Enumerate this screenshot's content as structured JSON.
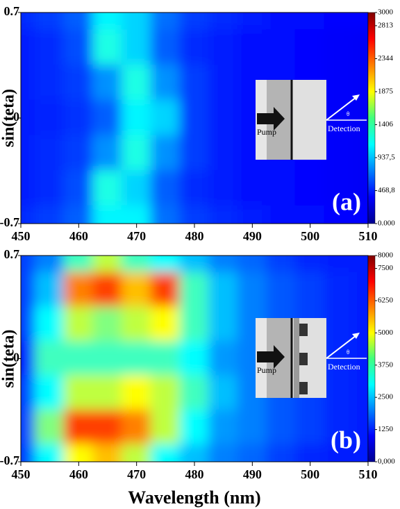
{
  "chart_data": [
    {
      "type": "heatmap",
      "y_label": "sin(teta)",
      "annotation": "(a)",
      "inset": {
        "pump": "Pump",
        "detection": "Detection",
        "angle": "θ"
      },
      "x": [
        450,
        455,
        460,
        465,
        470,
        475,
        480,
        485,
        490,
        495,
        500,
        505,
        510
      ],
      "y": [
        0.7,
        0.467,
        0.233,
        0,
        -0.233,
        -0.467,
        -0.7
      ],
      "values": [
        [
          500,
          550,
          650,
          1100,
          1000,
          700,
          550,
          500,
          450,
          420,
          400,
          380,
          380
        ],
        [
          450,
          500,
          600,
          1200,
          1000,
          650,
          500,
          450,
          420,
          400,
          380,
          360,
          350
        ],
        [
          450,
          500,
          550,
          800,
          1200,
          800,
          550,
          450,
          420,
          400,
          380,
          360,
          350
        ],
        [
          450,
          480,
          520,
          650,
          1100,
          1000,
          550,
          450,
          420,
          400,
          380,
          360,
          350
        ],
        [
          450,
          500,
          550,
          800,
          1200,
          800,
          550,
          450,
          420,
          400,
          380,
          360,
          350
        ],
        [
          450,
          500,
          600,
          1200,
          1000,
          650,
          500,
          450,
          420,
          400,
          380,
          360,
          350
        ],
        [
          500,
          550,
          650,
          1100,
          1100,
          700,
          550,
          500,
          450,
          420,
          400,
          380,
          380
        ]
      ],
      "xlim": [
        450,
        510
      ],
      "xticks": [
        450,
        460,
        470,
        480,
        490,
        500,
        510
      ],
      "ylim": [
        -0.7,
        0.7
      ],
      "yticks": [
        0.7,
        0,
        -0.7
      ],
      "zlim": [
        0,
        3000
      ],
      "zticks": [
        {
          "value": 0,
          "label": "0.000"
        },
        {
          "value": 468.8,
          "label": "468,8"
        },
        {
          "value": 937.5,
          "label": "937,5"
        },
        1406,
        1875,
        2344,
        2813,
        3000
      ]
    },
    {
      "type": "heatmap",
      "x_label": "Wavelength (nm)",
      "y_label": "sin(teta)",
      "annotation": "(b)",
      "inset": {
        "pump": "Pump",
        "detection": "Detection",
        "angle": "θ"
      },
      "x": [
        450,
        455,
        460,
        465,
        470,
        475,
        480,
        485,
        490,
        495,
        500,
        505,
        510
      ],
      "y": [
        0.7,
        0.467,
        0.233,
        0,
        -0.233,
        -0.467,
        -0.7
      ],
      "values": [
        [
          1500,
          2000,
          3500,
          4500,
          3500,
          3000,
          2500,
          2000,
          1800,
          1500,
          1300,
          1200,
          1200
        ],
        [
          1500,
          2500,
          6000,
          6500,
          5500,
          6500,
          3500,
          2500,
          2000,
          1700,
          1500,
          1300,
          1200
        ],
        [
          1500,
          3000,
          4500,
          4000,
          4500,
          5000,
          3500,
          2500,
          2000,
          1700,
          1500,
          1300,
          1200
        ],
        [
          1200,
          3500,
          3500,
          3500,
          3500,
          3500,
          3000,
          2200,
          2000,
          1800,
          1500,
          1300,
          1200
        ],
        [
          1500,
          3000,
          4500,
          4500,
          5000,
          4500,
          3500,
          2500,
          2000,
          1700,
          1500,
          1300,
          1200
        ],
        [
          1500,
          4000,
          6500,
          6500,
          6000,
          4500,
          3000,
          2200,
          2000,
          1700,
          1500,
          1300,
          1200
        ],
        [
          1500,
          3000,
          5000,
          5500,
          4500,
          3000,
          2500,
          2000,
          1800,
          1500,
          1300,
          1200,
          1200
        ]
      ],
      "xlim": [
        450,
        510
      ],
      "xticks": [
        450,
        460,
        470,
        480,
        490,
        500,
        510
      ],
      "ylim": [
        -0.7,
        0.7
      ],
      "yticks": [
        0.7,
        0,
        -0.7
      ],
      "zlim": [
        0,
        8000
      ],
      "zticks": [
        {
          "value": 0,
          "label": "0,000"
        },
        1250,
        2500,
        3750,
        5000,
        6250,
        7500,
        8000
      ]
    }
  ]
}
